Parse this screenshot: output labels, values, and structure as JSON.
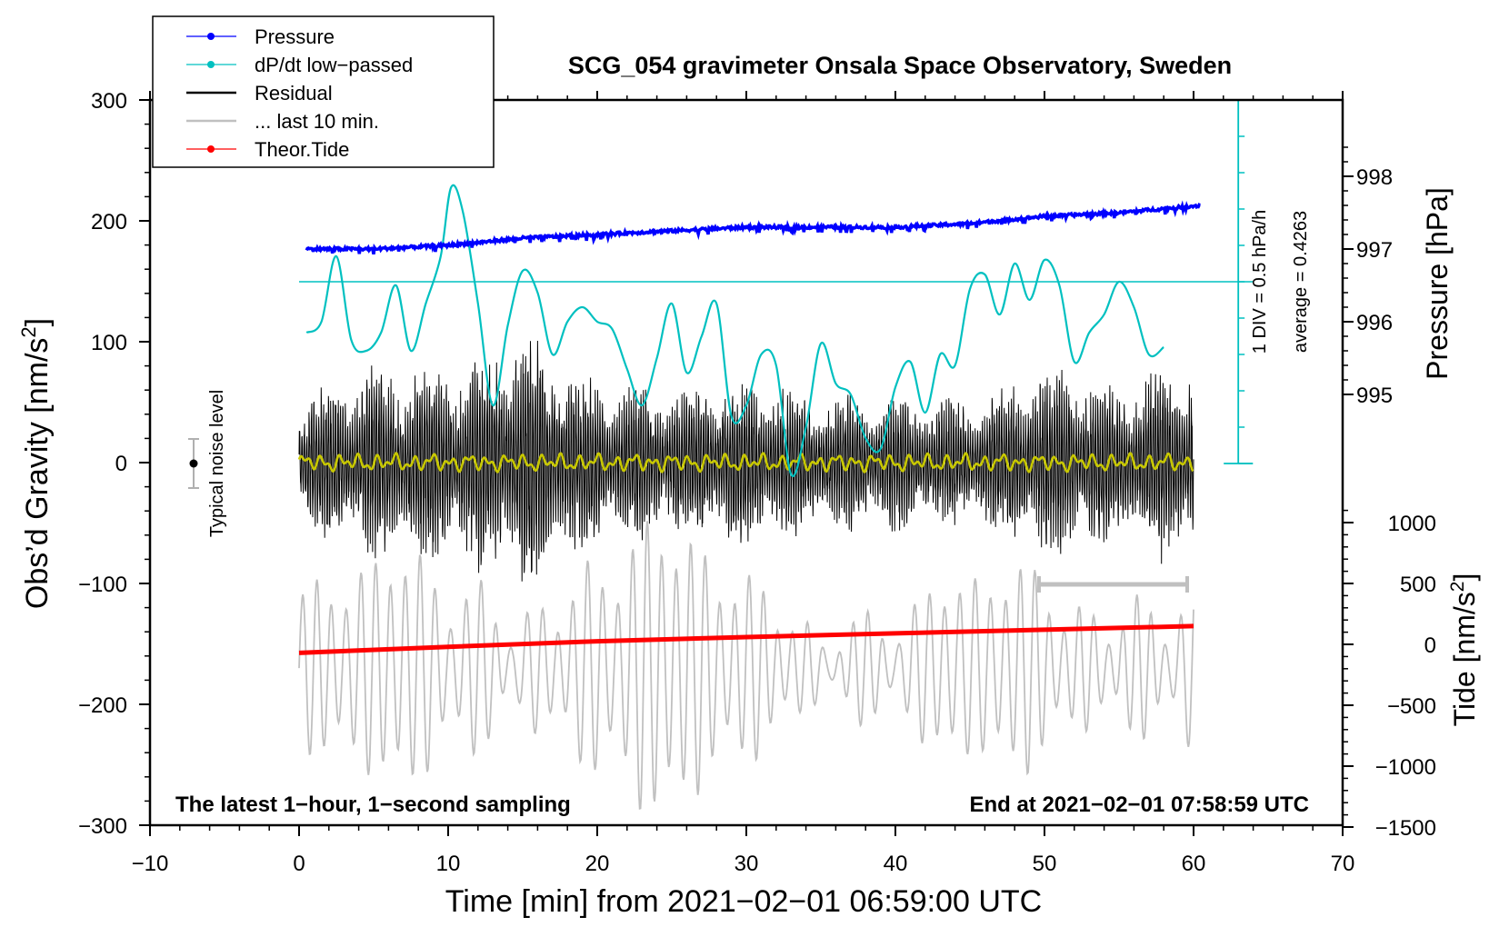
{
  "chart_data": {
    "type": "line",
    "title": "SCG_054 gravimeter Onsala Space Observatory, Sweden",
    "xlabel": "Time [min] from 2021−02−01 06:59:00 UTC",
    "ylabel_left_main": "Obs’d Gravity [nm/s",
    "ylabel_left_sup": "2",
    "ylabel_left_end": "]",
    "ylabel_right_pressure": "Pressure [hPa]",
    "ylabel_right_tide_main": "Tide [nm/s",
    "ylabel_right_tide_sup": "2",
    "ylabel_right_tide_end": "]",
    "xlim": [
      -10,
      70
    ],
    "ylim_left": [
      -300,
      300
    ],
    "x_ticks": [
      "−10",
      "0",
      "10",
      "20",
      "30",
      "40",
      "50",
      "60",
      "70"
    ],
    "y_ticks_left": [
      "300",
      "200",
      "100",
      "0",
      "−100",
      "−200",
      "−300"
    ],
    "pressure_ticks": [
      "998",
      "997",
      "996",
      "995"
    ],
    "tide_ticks": [
      "1000",
      "500",
      "0",
      "−500",
      "−1000",
      "−1500"
    ],
    "legend": [
      {
        "label": "Pressure",
        "color": "#0000ff",
        "marker": true
      },
      {
        "label": "dP/dt low−passed",
        "color": "#00c0c0",
        "marker": true
      },
      {
        "label": "Residual",
        "color": "#000000",
        "marker": false
      },
      {
        "label": "... last 10 min.",
        "color": "#c0c0c0",
        "marker": false
      },
      {
        "label": "Theor.Tide",
        "color": "#ff0000",
        "marker": true
      }
    ],
    "noise_label": "Typical noise level",
    "dpdt_scale_label": "1 DIV = 0.5 hPa/h",
    "dpdt_average_label": "average = 0.4263",
    "footer_left": "The latest 1−hour, 1−second sampling",
    "footer_right": "End at 2021−02−01 07:58:59 UTC",
    "colors": {
      "pressure": "#0000ff",
      "dpdt": "#00c0c0",
      "residual": "#000000",
      "last10": "#c0c0c0",
      "tide": "#ff0000",
      "smoothed": "#c8c800"
    },
    "series": [
      {
        "name": "Pressure",
        "unit": "hPa",
        "x": [
          0.5,
          5,
          10,
          15,
          20,
          25,
          30,
          35,
          40,
          45,
          50,
          55,
          60.5
        ],
        "values": [
          997.0,
          997.0,
          997.05,
          997.15,
          997.2,
          997.25,
          997.3,
          997.3,
          997.3,
          997.35,
          997.45,
          997.5,
          997.6
        ]
      },
      {
        "name": "dP/dt low−passed",
        "unit": "div",
        "x": [
          0.5,
          1.5,
          2.5,
          3.5,
          4.5,
          5.5,
          6.5,
          7.5,
          8.5,
          9.5,
          10.2,
          11,
          12,
          13,
          14,
          15,
          16,
          17,
          18,
          19,
          20,
          21,
          22,
          23,
          24,
          25,
          26,
          27,
          28,
          29,
          30,
          31,
          32,
          33,
          34,
          35,
          36,
          37,
          38,
          39,
          40,
          41,
          42,
          43,
          44,
          45,
          46,
          47,
          48,
          49,
          50,
          51,
          52,
          53,
          54,
          55,
          56,
          57,
          58
        ],
        "values": [
          3.6,
          3.9,
          5.7,
          3.4,
          3.1,
          3.6,
          4.9,
          3.1,
          4.4,
          5.7,
          7.6,
          6.9,
          4.4,
          1.6,
          3.8,
          5.3,
          4.7,
          3.0,
          3.9,
          4.3,
          3.9,
          3.7,
          2.6,
          1.6,
          2.9,
          4.4,
          2.5,
          3.5,
          4.4,
          1.3,
          1.6,
          3.0,
          2.7,
          -0.3,
          1.0,
          3.3,
          2.2,
          1.9,
          0.7,
          0.4,
          2.1,
          2.8,
          1.4,
          3.0,
          2.7,
          4.8,
          5.2,
          4.1,
          5.5,
          4.5,
          5.6,
          4.9,
          2.8,
          3.6,
          4.1,
          5.0,
          4.3,
          3.0,
          3.2
        ]
      },
      {
        "name": "Residual",
        "unit": "nm/s2",
        "envelope_x": [
          0,
          5,
          10,
          15,
          20,
          25,
          30,
          35,
          40,
          45,
          50,
          55,
          60
        ],
        "envelope_amplitude": [
          55,
          85,
          90,
          115,
          70,
          65,
          75,
          60,
          60,
          55,
          85,
          75,
          95
        ]
      },
      {
        "name": "... last 10 min.",
        "unit": "nm/s2 (display offset −170)",
        "x_range": [
          0,
          60
        ],
        "amplitude": [
          60,
          100,
          50,
          90
        ]
      },
      {
        "name": "Theor.Tide",
        "unit": "nm/s2",
        "x": [
          0,
          10,
          20,
          30,
          40,
          50,
          60
        ],
        "values": [
          -70,
          -20,
          25,
          60,
          90,
          120,
          150
        ]
      }
    ],
    "last10_range_min": [
      50,
      60
    ]
  }
}
